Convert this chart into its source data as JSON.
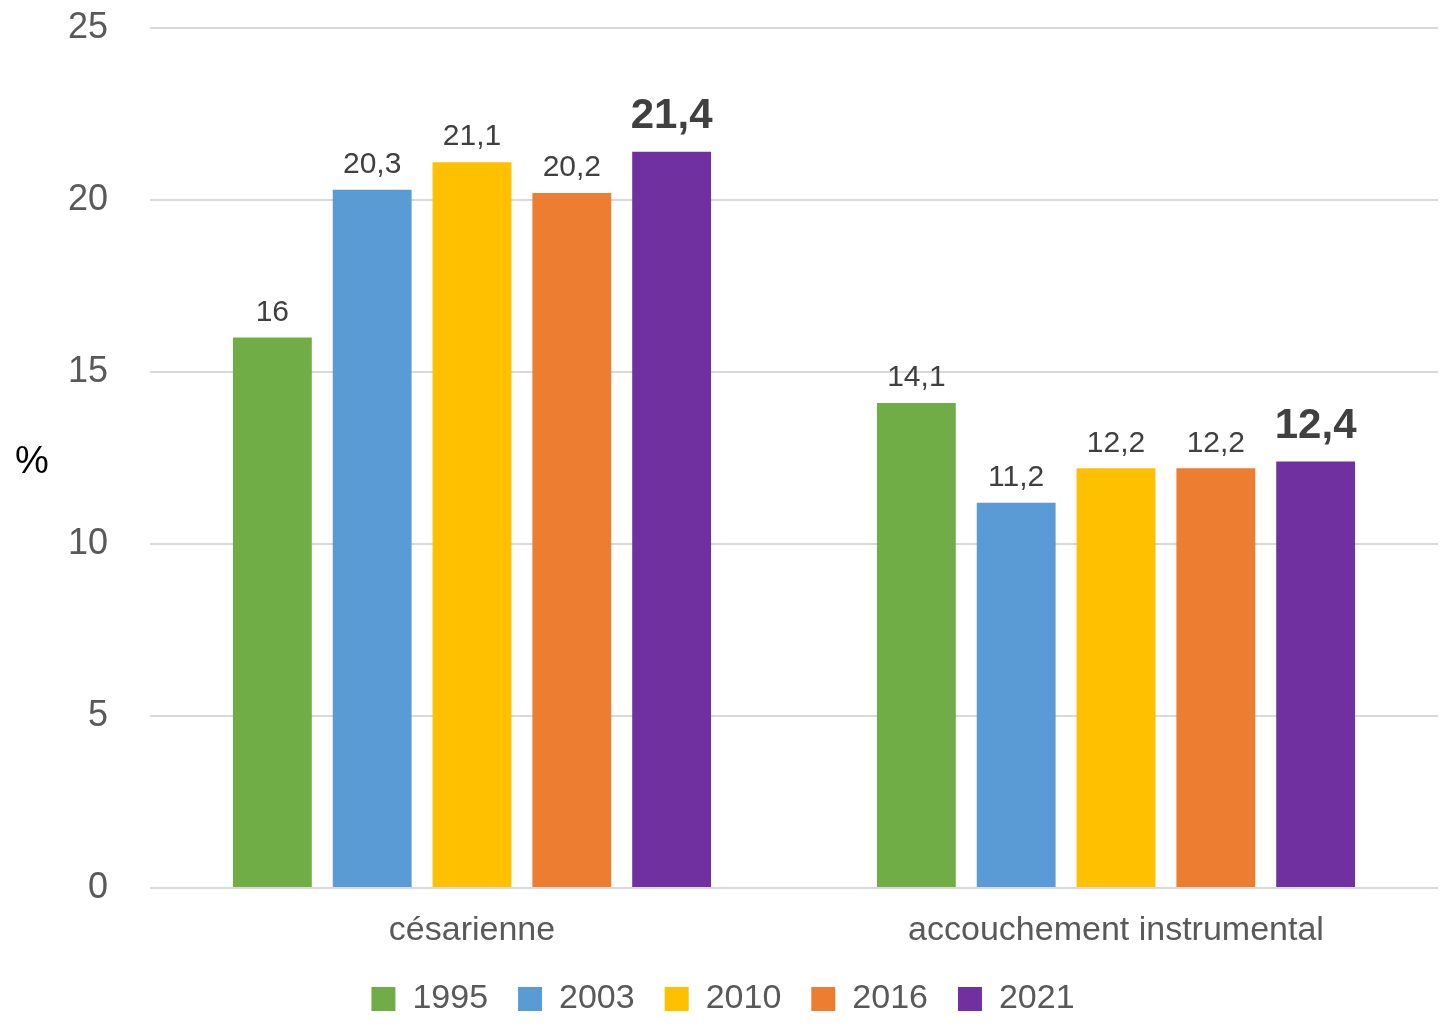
{
  "chart_data": {
    "type": "bar",
    "ylabel": "%",
    "categories": [
      "césarienne",
      "accouchement instrumental"
    ],
    "series": [
      {
        "name": "1995",
        "color": "#70ad47",
        "values": [
          16,
          14.1
        ],
        "value_labels": [
          "16",
          "14,1"
        ]
      },
      {
        "name": "2003",
        "color": "#5b9bd5",
        "values": [
          20.3,
          11.2
        ],
        "value_labels": [
          "20,3",
          "11,2"
        ]
      },
      {
        "name": "2010",
        "color": "#ffc000",
        "values": [
          21.1,
          12.2
        ],
        "value_labels": [
          "21,1",
          "12,2"
        ]
      },
      {
        "name": "2016",
        "color": "#ed7d31",
        "values": [
          20.2,
          12.2
        ],
        "value_labels": [
          "20,2",
          "12,2"
        ]
      },
      {
        "name": "2021",
        "color": "#7030a0",
        "values": [
          21.4,
          12.4
        ],
        "value_labels": [
          "21,4",
          "12,4"
        ]
      }
    ],
    "ylim": [
      0,
      25
    ],
    "yticks": [
      0,
      5,
      10,
      15,
      20,
      25
    ],
    "grid": "y",
    "legend": "bottom"
  }
}
